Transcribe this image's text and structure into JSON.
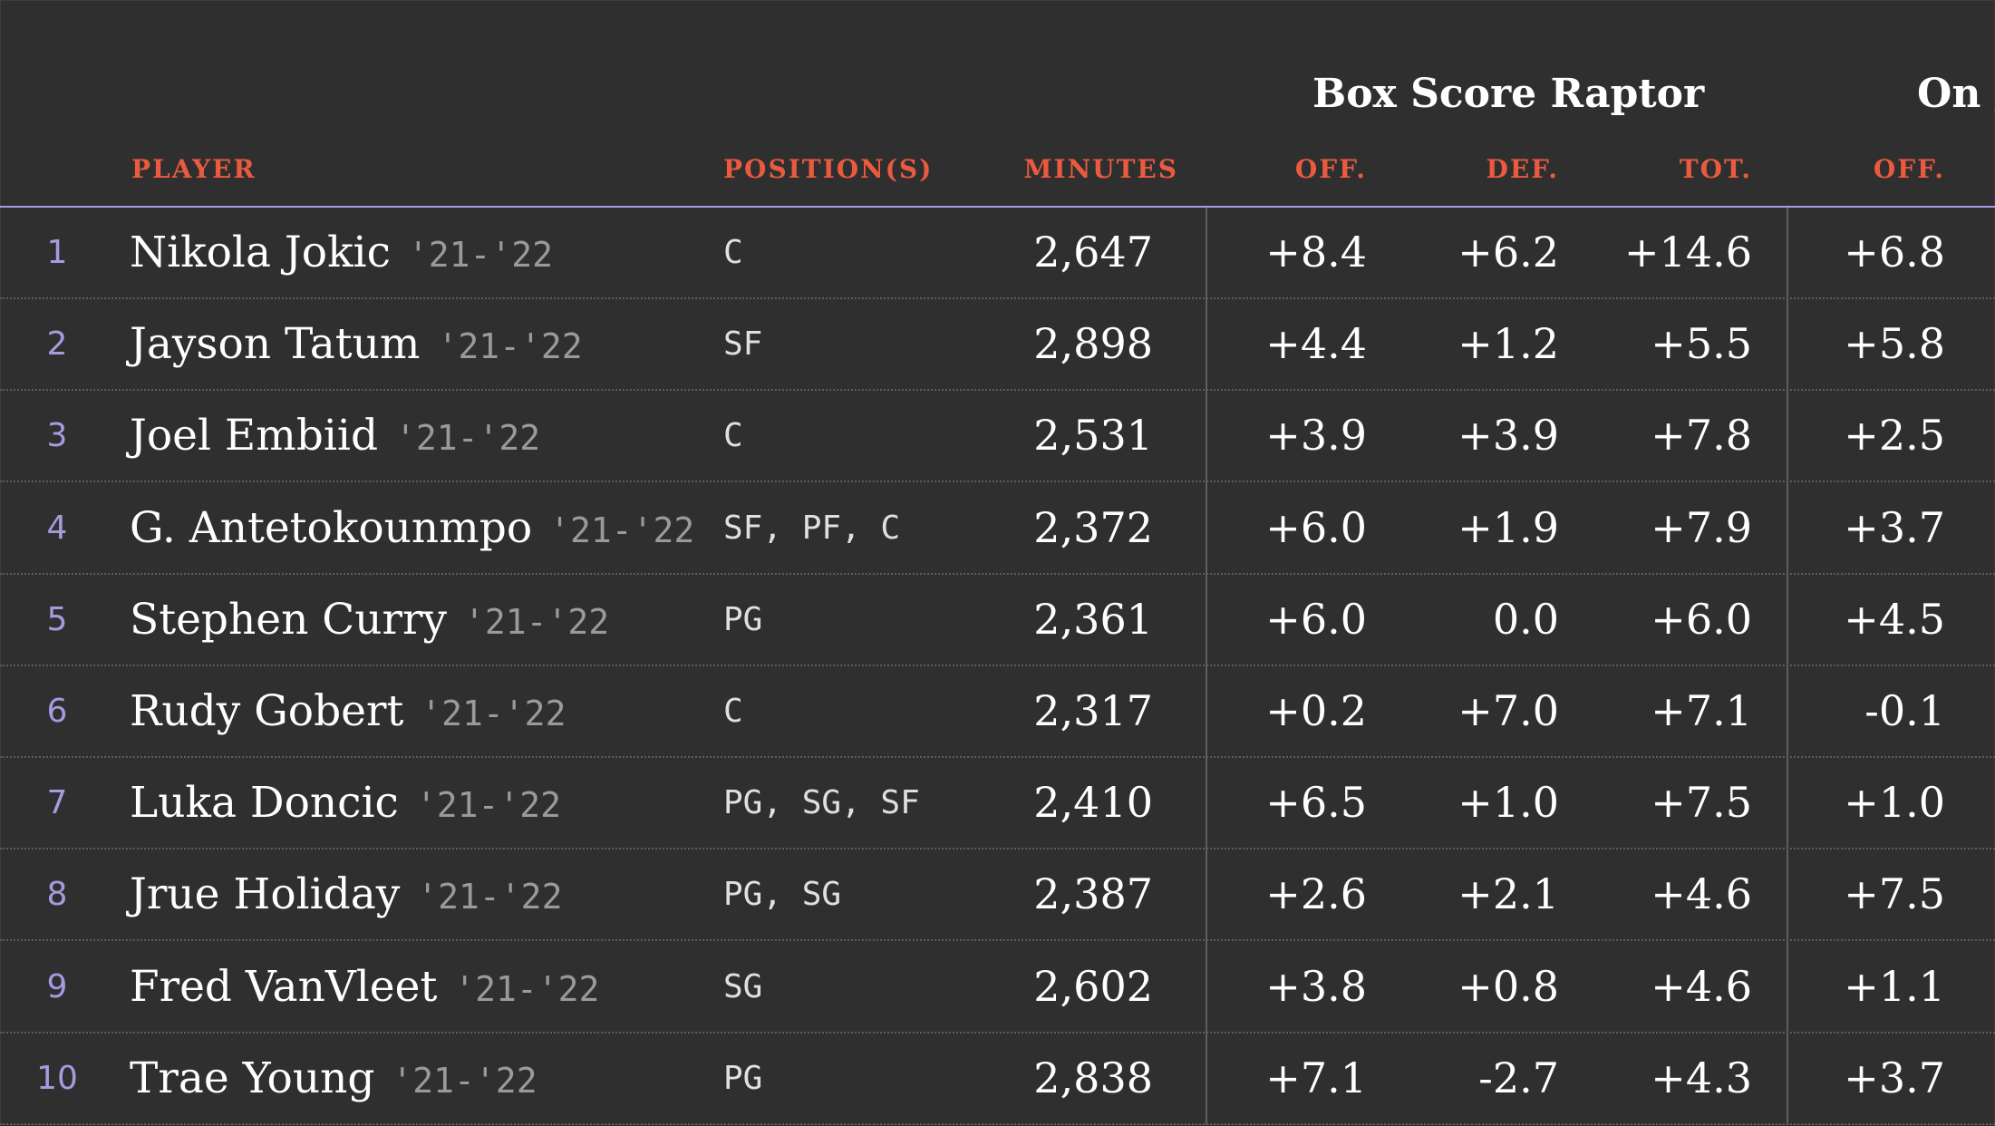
{
  "groups": {
    "box_score_raptor": "Box Score Raptor",
    "on_off_partial": "On /"
  },
  "columns": {
    "player": "PLAYER",
    "positions": "POSITION(S)",
    "minutes": "MINUTES",
    "off": "OFF.",
    "def": "DEF.",
    "tot": "TOT.",
    "onoff_off": "OFF."
  },
  "rows": [
    {
      "rank": "1",
      "name": "Nikola Jokic",
      "season": "'21-'22",
      "position": "C",
      "minutes": "2,647",
      "off": "+8.4",
      "def": "+6.2",
      "tot": "+14.6",
      "onoff_off": "+6.8"
    },
    {
      "rank": "2",
      "name": "Jayson Tatum",
      "season": "'21-'22",
      "position": "SF",
      "minutes": "2,898",
      "off": "+4.4",
      "def": "+1.2",
      "tot": "+5.5",
      "onoff_off": "+5.8"
    },
    {
      "rank": "3",
      "name": "Joel Embiid",
      "season": "'21-'22",
      "position": "C",
      "minutes": "2,531",
      "off": "+3.9",
      "def": "+3.9",
      "tot": "+7.8",
      "onoff_off": "+2.5"
    },
    {
      "rank": "4",
      "name": "G. Antetokounmpo",
      "season": "'21-'22",
      "position": "SF, PF, C",
      "minutes": "2,372",
      "off": "+6.0",
      "def": "+1.9",
      "tot": "+7.9",
      "onoff_off": "+3.7"
    },
    {
      "rank": "5",
      "name": "Stephen Curry",
      "season": "'21-'22",
      "position": "PG",
      "minutes": "2,361",
      "off": "+6.0",
      "def": "0.0",
      "tot": "+6.0",
      "onoff_off": "+4.5"
    },
    {
      "rank": "6",
      "name": "Rudy Gobert",
      "season": "'21-'22",
      "position": "C",
      "minutes": "2,317",
      "off": "+0.2",
      "def": "+7.0",
      "tot": "+7.1",
      "onoff_off": "-0.1"
    },
    {
      "rank": "7",
      "name": "Luka Doncic",
      "season": "'21-'22",
      "position": "PG, SG, SF",
      "minutes": "2,410",
      "off": "+6.5",
      "def": "+1.0",
      "tot": "+7.5",
      "onoff_off": "+1.0"
    },
    {
      "rank": "8",
      "name": "Jrue Holiday",
      "season": "'21-'22",
      "position": "PG, SG",
      "minutes": "2,387",
      "off": "+2.6",
      "def": "+2.1",
      "tot": "+4.6",
      "onoff_off": "+7.5"
    },
    {
      "rank": "9",
      "name": "Fred VanVleet",
      "season": "'21-'22",
      "position": "SG",
      "minutes": "2,602",
      "off": "+3.8",
      "def": "+0.8",
      "tot": "+4.6",
      "onoff_off": "+1.1"
    },
    {
      "rank": "10",
      "name": "Trae Young",
      "season": "'21-'22",
      "position": "PG",
      "minutes": "2,838",
      "off": "+7.1",
      "def": "-2.7",
      "tot": "+4.3",
      "onoff_off": "+3.7"
    }
  ],
  "colors": {
    "background": "#2f2f2f",
    "header_text": "#ea5a3f",
    "rank_text": "#a99ae0",
    "header_rule": "#a99ae0",
    "season_text": "#9a9a9a"
  }
}
